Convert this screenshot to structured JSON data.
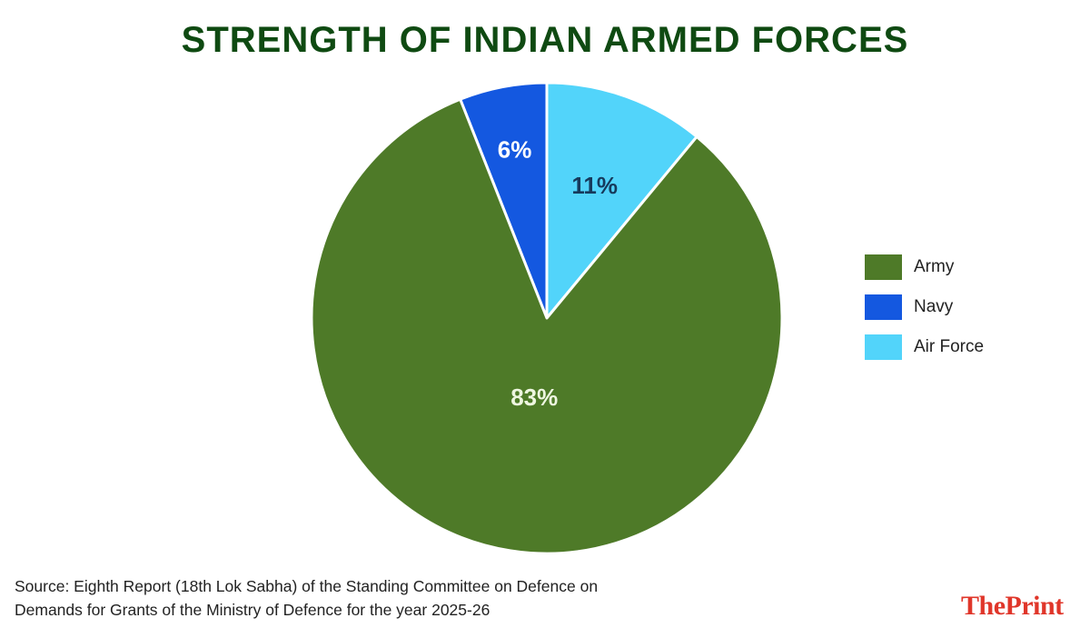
{
  "title": "STRENGTH OF INDIAN ARMED FORCES",
  "chart_data": {
    "type": "pie",
    "title": "STRENGTH OF INDIAN ARMED FORCES",
    "slices": [
      {
        "label": "Navy",
        "value": 6,
        "value_label": "6%",
        "color": "#1458e0",
        "text_color": "#ffffff"
      },
      {
        "label": "Air Force",
        "value": 11,
        "value_label": "11%",
        "color": "#52d4fa",
        "text_color": "#163a5c"
      },
      {
        "label": "Army",
        "value": 83,
        "value_label": "83%",
        "color": "#4e7a28",
        "text_color": "#eef6e0"
      }
    ],
    "legend_placement": "right",
    "legend": [
      {
        "label": "Army",
        "color": "#4e7a28"
      },
      {
        "label": "Navy",
        "color": "#1458e0"
      },
      {
        "label": "Air Force",
        "color": "#52d4fa"
      }
    ]
  },
  "source": {
    "line1": "Source:  Eighth Report (18th Lok Sabha) of the Standing Committee on Defence on",
    "line2": "Demands for Grants of the Ministry of Defence for the year 2025-26"
  },
  "logo": {
    "text": "ThePrint"
  }
}
